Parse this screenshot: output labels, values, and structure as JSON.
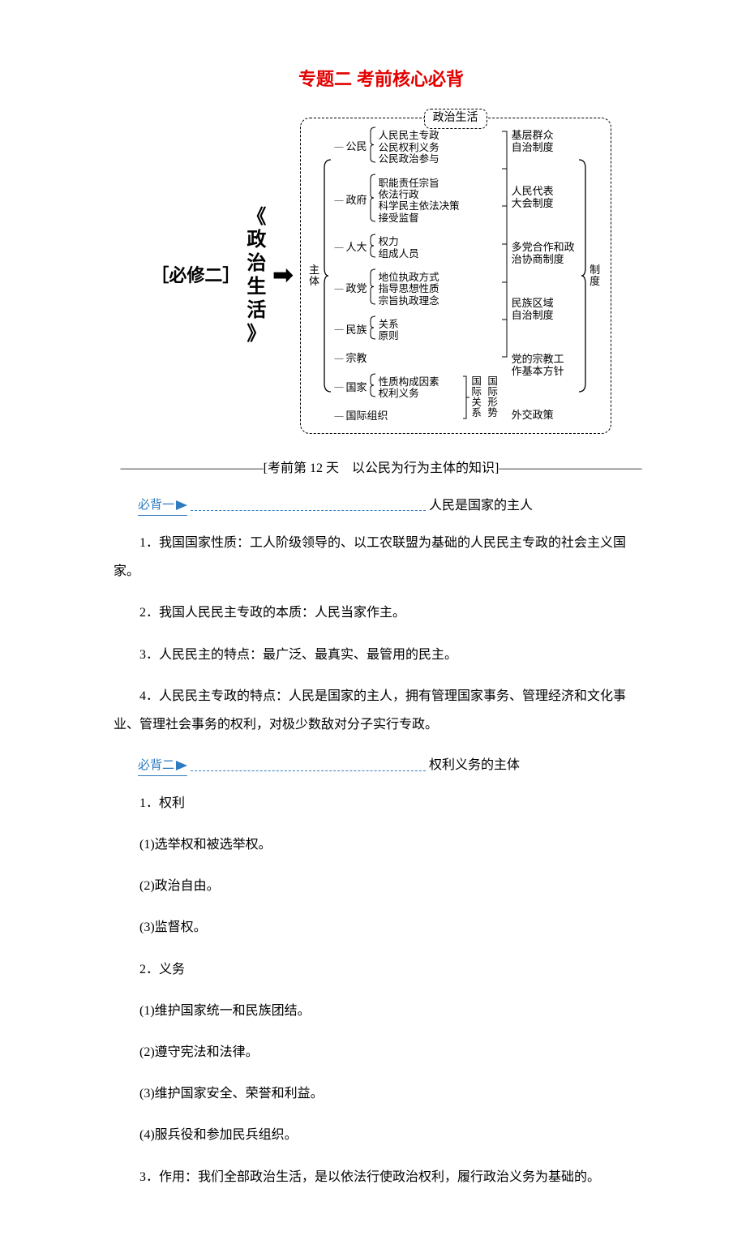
{
  "title": {
    "text": "专题二 考前核心必背",
    "color": "#e30000"
  },
  "diagram": {
    "required_label": "［必修二］",
    "book_title": "《政治生活》",
    "arrow": "➡",
    "box_title": "政治生活",
    "trunk_label": "主体",
    "col2": [
      {
        "label": "公民",
        "subs": [
          "人民民主专政",
          "公民权利义务",
          "公民政治参与"
        ]
      },
      {
        "label": "政府",
        "subs": [
          "职能责任宗旨",
          "依法行政",
          "科学民主依法决策",
          "接受监督"
        ]
      },
      {
        "label": "人大",
        "subs": [
          "权力",
          "组成人员"
        ]
      },
      {
        "label": "政党",
        "subs": [
          "地位执政方式",
          "指导思想性质",
          "宗旨执政理念"
        ]
      },
      {
        "label": "民族",
        "subs": [
          "关系",
          "原则"
        ]
      },
      {
        "label": "宗教",
        "subs": []
      },
      {
        "label": "国家",
        "subs": [
          "性质构成因素",
          "权利义务"
        ]
      },
      {
        "label": "国际组织",
        "subs": []
      }
    ],
    "ir": {
      "a": "国际关系",
      "b": "国际形势"
    },
    "col3": [
      "基层群众自治制度",
      "人民代表大会制度",
      "多党合作和政治协商制度",
      "民族区域自治制度",
      "党的宗教工作基本方针",
      "外交政策"
    ],
    "side_label": "制度"
  },
  "day_line": "———————————[考前第 12 天　以公民为行为主体的知识]———————————",
  "tag1": {
    "label": "必背一",
    "title": "人民是国家的主人",
    "color": "#2f7bbf"
  },
  "sec1": {
    "p1": "1．我国国家性质：工人阶级领导的、以工农联盟为基础的人民民主专政的社会主义国家。",
    "p2": "2．我国人民民主专政的本质：人民当家作主。",
    "p3": "3．人民民主的特点：最广泛、最真实、最管用的民主。",
    "p4": "4．人民民主专政的特点：人民是国家的主人，拥有管理国家事务、管理经济和文化事业、管理社会事务的权利，对极少数敌对分子实行专政。"
  },
  "tag2": {
    "label": "必背二",
    "title": "权利义务的主体",
    "color": "#2f7bbf"
  },
  "sec2": {
    "q_h": "1．权利",
    "q1": "(1)选举权和被选举权。",
    "q2": "(2)政治自由。",
    "q3": "(3)监督权。",
    "y_h": "2．义务",
    "y1": "(1)维护国家统一和民族团结。",
    "y2": "(2)遵守宪法和法律。",
    "y3": "(3)维护国家安全、荣誉和利益。",
    "y4": "(4)服兵役和参加民兵组织。",
    "z": "3．作用：我们全部政治生活，是以依法行使政治权利，履行政治义务为基础的。"
  }
}
